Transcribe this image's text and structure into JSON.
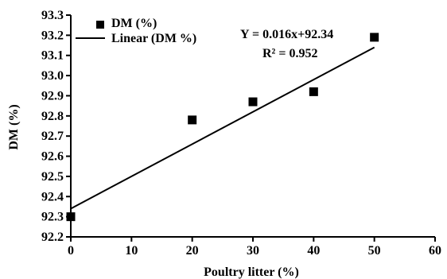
{
  "chart_data": {
    "type": "scatter",
    "xlabel": "Poultry litter (%)",
    "ylabel": "DM (%)",
    "xlim": [
      0,
      60
    ],
    "ylim": [
      92.2,
      93.3
    ],
    "x_ticks": [
      "0",
      "10",
      "20",
      "30",
      "40",
      "50",
      "60"
    ],
    "y_ticks": [
      "92.2",
      "92.3",
      "92.4",
      "92.5",
      "92.6",
      "92.7",
      "92.8",
      "92.9",
      "93.0",
      "93.1",
      "93.2",
      "93.3"
    ],
    "series": [
      {
        "name": "DM (%)",
        "x": [
          0,
          20,
          30,
          40,
          50
        ],
        "y": [
          92.3,
          92.78,
          92.87,
          92.92,
          93.19
        ]
      }
    ],
    "trendline": {
      "name": "Linear (DM %)",
      "slope": 0.016,
      "intercept": 92.34
    },
    "annotations": {
      "equation": "Y = 0.016x+92.34",
      "r2": "R² = 0.952"
    },
    "legend_position": "top-left",
    "grid": false,
    "colors": {
      "marker": "#000000",
      "line": "#000000"
    }
  }
}
